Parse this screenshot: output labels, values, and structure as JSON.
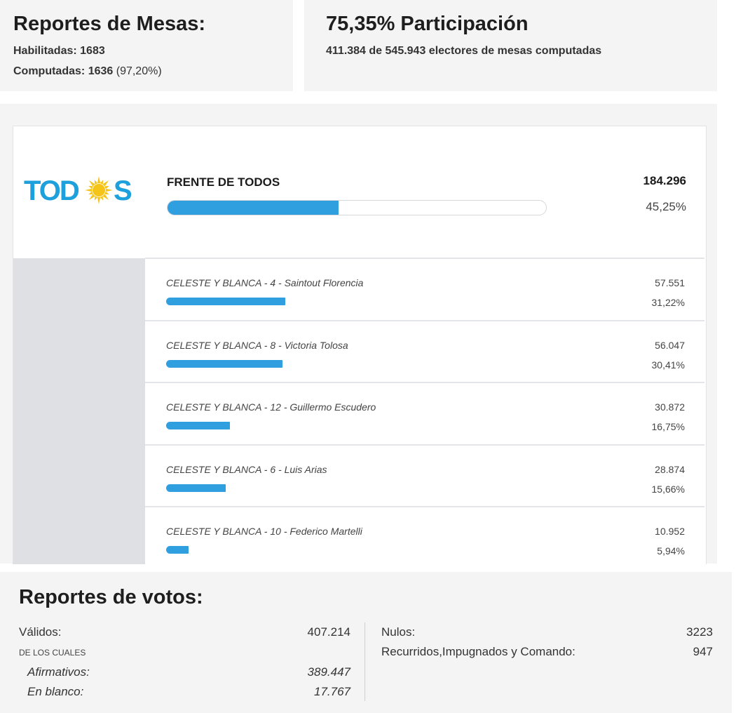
{
  "mesas": {
    "title": "Reportes de Mesas:",
    "habilitadas_label": "Habilitadas:",
    "habilitadas_value": "1683",
    "computadas_label": "Computadas:",
    "computadas_value": "1636",
    "computadas_pct": "(97,20%)"
  },
  "participacion": {
    "title": "75,35% Participación",
    "detail": "411.384 de 545.943 electores de mesas computadas"
  },
  "frente": {
    "logo_text": "TODOS",
    "logo_color": "#1ea0dc",
    "logo_sun_color": "#f5c418",
    "name": "FRENTE DE TODOS",
    "votes": "184.296",
    "pct": "45,25%",
    "pct_value": 45.25,
    "bar_color": "#2f9fe0"
  },
  "candidates": [
    {
      "name": "CELESTE Y BLANCA - 4 - Saintout Florencia",
      "votes": "57.551",
      "pct": "31,22%",
      "pct_value": 31.22
    },
    {
      "name": "CELESTE Y BLANCA - 8 - Victoria Tolosa",
      "votes": "56.047",
      "pct": "30,41%",
      "pct_value": 30.41
    },
    {
      "name": "CELESTE Y BLANCA - 12 - Guillermo Escudero",
      "votes": "30.872",
      "pct": "16,75%",
      "pct_value": 16.75
    },
    {
      "name": "CELESTE Y BLANCA - 6 - Luis Arias",
      "votes": "28.874",
      "pct": "15,66%",
      "pct_value": 15.66
    },
    {
      "name": "CELESTE Y BLANCA - 10 - Federico Martelli",
      "votes": "10.952",
      "pct": "5,94%",
      "pct_value": 5.94
    }
  ],
  "votos": {
    "title": "Reportes de votos:",
    "validos_label": "Válidos:",
    "validos_value": "407.214",
    "de_los_cuales": "DE LOS CUALES",
    "afirmativos_label": "Afirmativos:",
    "afirmativos_value": "389.447",
    "blanco_label": "En blanco:",
    "blanco_value": "17.767",
    "nulos_label": "Nulos:",
    "nulos_value": "3223",
    "recurridos_label": "Recurridos,Impugnados y Comando:",
    "recurridos_value": "947"
  }
}
